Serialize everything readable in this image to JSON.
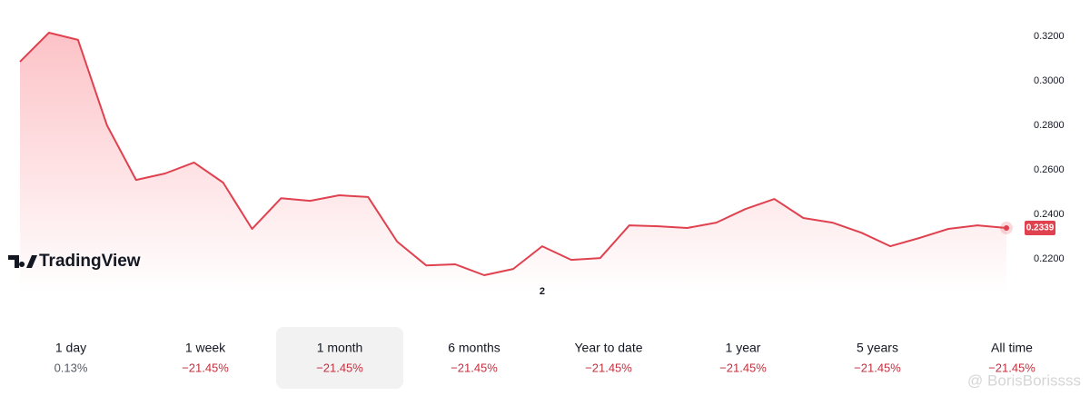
{
  "chart_data": {
    "type": "line",
    "categories": [
      null,
      null,
      null,
      null,
      null,
      null,
      null,
      null,
      null,
      null,
      null,
      null,
      null,
      null,
      null,
      null,
      null,
      null,
      "2",
      null,
      null,
      null,
      null,
      null,
      null,
      null,
      null,
      null,
      null,
      null,
      null,
      null,
      null,
      null,
      null
    ],
    "series": [
      {
        "color": "#e0414f",
        "values": [
          0.3086,
          0.3216,
          0.3184,
          0.28,
          0.2555,
          0.2584,
          0.2633,
          0.2543,
          0.2335,
          0.2473,
          0.2461,
          0.2486,
          0.2478,
          0.2278,
          0.2171,
          0.2176,
          0.2127,
          0.2155,
          0.2257,
          0.2196,
          0.2204,
          0.2351,
          0.2347,
          0.2339,
          0.2363,
          0.2424,
          0.2469,
          0.2384,
          0.2363,
          0.2318,
          0.2257,
          0.2294,
          0.2335,
          0.2351,
          0.2339
        ]
      }
    ],
    "ylim": [
      0.1976,
      0.3363
    ],
    "yticks": [
      {
        "value": 0.22,
        "label": "0.2200"
      },
      {
        "value": 0.24,
        "label": "0.2400"
      },
      {
        "value": 0.26,
        "label": "0.2600"
      },
      {
        "value": 0.28,
        "label": "0.2800"
      },
      {
        "value": 0.3,
        "label": "0.3000"
      },
      {
        "value": 0.32,
        "label": "0.3200"
      }
    ],
    "grid": false
  },
  "branding": "TradingView",
  "periods": [
    {
      "label": "1 day",
      "change": "0.13%"
    },
    {
      "label": "1 week",
      "change": "−21.45%"
    },
    {
      "label": "1 month",
      "change": "−21.45%"
    },
    {
      "label": "6 months",
      "change": "−21.45%"
    },
    {
      "label": "Year to date",
      "change": "−21.45%"
    },
    {
      "label": "1 year",
      "change": "−21.45%"
    },
    {
      "label": "5 years",
      "change": "−21.45%"
    },
    {
      "label": "All time",
      "change": "−21.45%"
    }
  ],
  "selected_period": 2,
  "watermark": "@ BorisBorissss"
}
